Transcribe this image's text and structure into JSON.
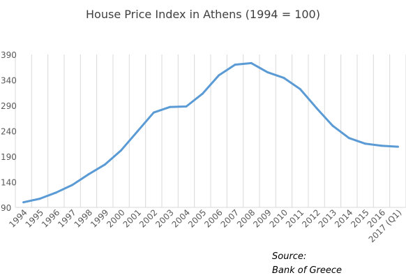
{
  "chart_data": {
    "type": "line",
    "title": "House Price Index in Athens (1994 = 100)",
    "xlabel": "",
    "ylabel": "",
    "x": [
      "1994",
      "1995",
      "1996",
      "1997",
      "1998",
      "1999",
      "2000",
      "2001",
      "2002",
      "2003",
      "2004",
      "2005",
      "2006",
      "2007",
      "2008",
      "2009",
      "2010",
      "2011",
      "2012",
      "2013",
      "2014",
      "2015",
      "2016",
      "2017 (Q1)"
    ],
    "series": [
      {
        "values": [
          100,
          107,
          119,
          134,
          155,
          174,
          202,
          239,
          276,
          287,
          288,
          313,
          349,
          370,
          373,
          355,
          344,
          322,
          285,
          250,
          226,
          215,
          211,
          209
        ]
      }
    ],
    "yticks": [
      90,
      140,
      190,
      240,
      290,
      340,
      390
    ],
    "ylim": [
      90,
      390
    ],
    "grid": "vertical",
    "legend": "none",
    "line_color": "#5b9bd5",
    "grid_color": "#d9d9d9"
  },
  "source": {
    "line1": "Source:",
    "line2": "Bank of Greece"
  }
}
